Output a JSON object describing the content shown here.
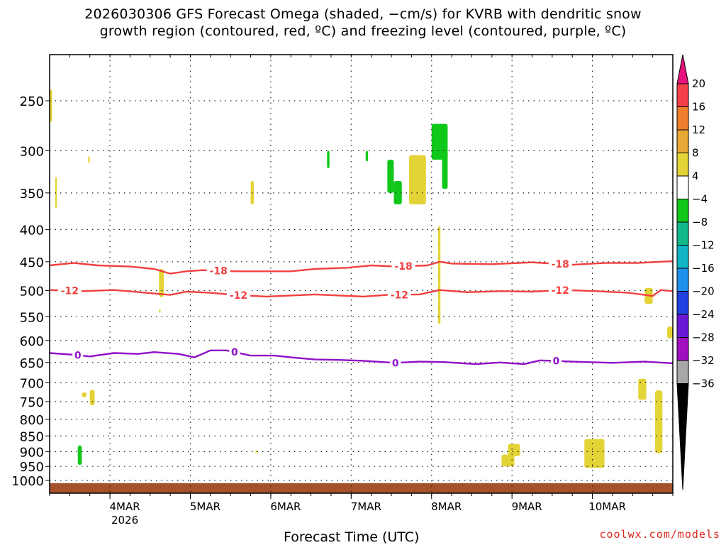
{
  "title": "2026030306 GFS Forecast Omega (shaded, −cm/s) for KVRB with dendritic snow\ngrowth region (contoured, red, ºC) and freezing level (contoured, purple, ºC)",
  "credit": "coolwx.com/models",
  "chart_data": {
    "type": "heatmap",
    "title": "2026030306 GFS Forecast Omega (shaded, −cm/s) for KVRB with dendritic snow growth region (contoured, red, ºC) and freezing level (contoured, purple, ºC)",
    "xlabel": "Forecast Time (UTC)",
    "ylabel": "",
    "x_unit": "days since 2026-03-03 06 UTC",
    "x_range": [
      0,
      7.75
    ],
    "y_range_hPa": [
      1030,
      200
    ],
    "y_scale": "log-pressure",
    "grid": "dotted",
    "x_ticks": [
      {
        "x": 0.75,
        "label": "4MAR",
        "sublabel": "2026"
      },
      {
        "x": 1.75,
        "label": "5MAR"
      },
      {
        "x": 2.75,
        "label": "6MAR"
      },
      {
        "x": 3.75,
        "label": "7MAR"
      },
      {
        "x": 4.75,
        "label": "8MAR"
      },
      {
        "x": 5.75,
        "label": "9MAR"
      },
      {
        "x": 6.75,
        "label": "10MAR"
      }
    ],
    "y_ticks": [
      250,
      300,
      350,
      400,
      450,
      500,
      550,
      600,
      650,
      700,
      750,
      800,
      850,
      900,
      950,
      1000
    ],
    "colorbar": {
      "labels": [
        "20",
        "16",
        "12",
        "8",
        "4",
        "−4",
        "−8",
        "−12",
        "−16",
        "−20",
        "−24",
        "−28",
        "−32",
        "−36"
      ],
      "colors": [
        "#f5404a",
        "#f07e2c",
        "#e8a936",
        "#e4d336",
        "#ffffff",
        "#10c81a",
        "#10b88a",
        "#10b6c6",
        "#1e90ee",
        "#2040e0",
        "#6a18d6",
        "#a010c0",
        "#a8a8a8"
      ],
      "top_arrow": "#e8127e",
      "bottom_arrow": "#000000"
    },
    "contours": [
      {
        "label": "-18",
        "color": "#f04040",
        "points": [
          [
            0,
            456
          ],
          [
            0.3,
            452
          ],
          [
            0.6,
            456
          ],
          [
            1.0,
            458
          ],
          [
            1.3,
            462
          ],
          [
            1.5,
            470
          ],
          [
            1.7,
            466
          ],
          [
            1.9,
            464
          ],
          [
            2.3,
            466
          ],
          [
            2.7,
            466
          ],
          [
            3.0,
            466
          ],
          [
            3.3,
            462
          ],
          [
            3.7,
            460
          ],
          [
            4.0,
            456
          ],
          [
            4.3,
            458
          ],
          [
            4.7,
            456
          ],
          [
            4.85,
            450
          ],
          [
            5.0,
            453
          ],
          [
            5.5,
            454
          ],
          [
            6.0,
            451
          ],
          [
            6.5,
            455
          ],
          [
            6.9,
            452
          ],
          [
            7.3,
            452
          ],
          [
            7.75,
            449
          ]
        ],
        "label_x": [
          2.1,
          4.4,
          6.35
        ]
      },
      {
        "label": "-12",
        "color": "#f04040",
        "points": [
          [
            0,
            499
          ],
          [
            0.4,
            501
          ],
          [
            0.8,
            499
          ],
          [
            1.2,
            504
          ],
          [
            1.5,
            508
          ],
          [
            1.7,
            502
          ],
          [
            2.0,
            504
          ],
          [
            2.3,
            508
          ],
          [
            2.7,
            511
          ],
          [
            3.0,
            509
          ],
          [
            3.3,
            507
          ],
          [
            3.6,
            509
          ],
          [
            3.9,
            511
          ],
          [
            4.2,
            508
          ],
          [
            4.6,
            507
          ],
          [
            4.85,
            499
          ],
          [
            5.2,
            503
          ],
          [
            5.6,
            501
          ],
          [
            6.0,
            502
          ],
          [
            6.4,
            499
          ],
          [
            6.8,
            501
          ],
          [
            7.2,
            504
          ],
          [
            7.5,
            510
          ],
          [
            7.6,
            499
          ],
          [
            7.75,
            501
          ]
        ],
        "label_x": [
          0.25,
          2.35,
          4.35,
          6.35
        ]
      },
      {
        "label": "0",
        "color": "#9010c8",
        "points": [
          [
            0,
            628
          ],
          [
            0.3,
            632
          ],
          [
            0.5,
            636
          ],
          [
            0.8,
            628
          ],
          [
            1.1,
            630
          ],
          [
            1.3,
            626
          ],
          [
            1.6,
            630
          ],
          [
            1.8,
            638
          ],
          [
            2.0,
            622
          ],
          [
            2.2,
            622
          ],
          [
            2.5,
            634
          ],
          [
            2.8,
            634
          ],
          [
            3.0,
            638
          ],
          [
            3.3,
            643
          ],
          [
            3.6,
            644
          ],
          [
            3.9,
            646
          ],
          [
            4.3,
            651
          ],
          [
            4.6,
            648
          ],
          [
            4.9,
            649
          ],
          [
            5.3,
            654
          ],
          [
            5.6,
            650
          ],
          [
            5.9,
            654
          ],
          [
            6.1,
            645
          ],
          [
            6.5,
            648
          ],
          [
            7.0,
            651
          ],
          [
            7.4,
            648
          ],
          [
            7.75,
            652
          ]
        ],
        "label_x": [
          0.35,
          2.3,
          4.3,
          6.3
        ]
      }
    ],
    "regions": [
      {
        "color": "#e4d336",
        "x": [
          0.0,
          0.03
        ],
        "p": [
          240,
          270
        ]
      },
      {
        "color": "#e4d336",
        "x": [
          0.07,
          0.09
        ],
        "p": [
          330,
          370
        ]
      },
      {
        "color": "#e4d336",
        "x": [
          0.48,
          0.5
        ],
        "p": [
          306,
          314
        ]
      },
      {
        "color": "#e4d336",
        "x": [
          2.5,
          2.54
        ],
        "p": [
          335,
          365
        ]
      },
      {
        "color": "#e4d336",
        "x": [
          1.36,
          1.38
        ],
        "p": [
          535,
          542
        ]
      },
      {
        "color": "#e4d336",
        "x": [
          1.36,
          1.42
        ],
        "p": [
          462,
          512
        ]
      },
      {
        "color": "#e4d336",
        "x": [
          0.4,
          0.46
        ],
        "p": [
          725,
          738
        ]
      },
      {
        "color": "#e4d336",
        "x": [
          0.5,
          0.56
        ],
        "p": [
          718,
          760
        ]
      },
      {
        "color": "#10c81a",
        "x": [
          0.35,
          0.4
        ],
        "p": [
          880,
          945
        ]
      },
      {
        "color": "#e4d336",
        "x": [
          2.56,
          2.58
        ],
        "p": [
          895,
          905
        ]
      },
      {
        "color": "#10c81a",
        "x": [
          3.45,
          3.48
        ],
        "p": [
          300,
          320
        ]
      },
      {
        "color": "#10c81a",
        "x": [
          3.93,
          3.96
        ],
        "p": [
          300,
          312
        ]
      },
      {
        "color": "#10c81a",
        "x": [
          4.2,
          4.28
        ],
        "p": [
          310,
          350
        ]
      },
      {
        "color": "#10c81a",
        "x": [
          4.28,
          4.38
        ],
        "p": [
          335,
          365
        ]
      },
      {
        "color": "#e4d336",
        "x": [
          4.47,
          4.68
        ],
        "p": [
          305,
          365
        ]
      },
      {
        "color": "#10c81a",
        "x": [
          4.75,
          4.95
        ],
        "p": [
          272,
          310
        ]
      },
      {
        "color": "#10c81a",
        "x": [
          4.88,
          4.95
        ],
        "p": [
          300,
          345
        ]
      },
      {
        "color": "#e4d336",
        "x": [
          4.83,
          4.86
        ],
        "p": [
          395,
          565
        ]
      },
      {
        "color": "#e4d336",
        "x": [
          5.62,
          5.78
        ],
        "p": [
          910,
          950
        ]
      },
      {
        "color": "#e4d336",
        "x": [
          5.7,
          5.85
        ],
        "p": [
          875,
          915
        ]
      },
      {
        "color": "#e4d336",
        "x": [
          6.65,
          6.9
        ],
        "p": [
          860,
          955
        ]
      },
      {
        "color": "#e4d336",
        "x": [
          7.32,
          7.42
        ],
        "p": [
          690,
          745
        ]
      },
      {
        "color": "#e4d336",
        "x": [
          7.4,
          7.5
        ],
        "p": [
          495,
          525
        ]
      },
      {
        "color": "#e4d336",
        "x": [
          7.53,
          7.62
        ],
        "p": [
          720,
          905
        ]
      },
      {
        "color": "#e4d336",
        "x": [
          7.68,
          7.75
        ],
        "p": [
          570,
          595
        ]
      }
    ],
    "ground": {
      "color": "#a5522a",
      "p_top": 1010
    }
  }
}
